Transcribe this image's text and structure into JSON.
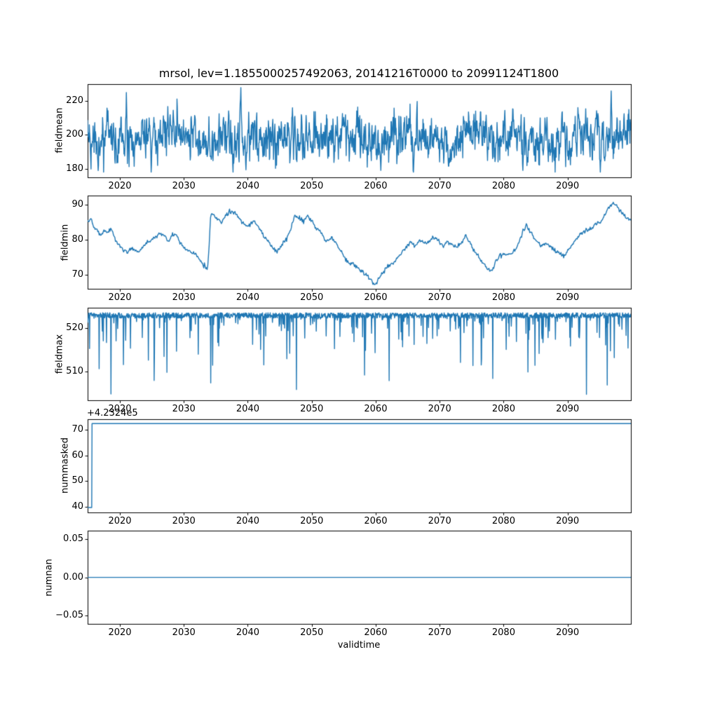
{
  "figure": {
    "title": "mrsol, lev=1.1855000257492063, 20141216T0000 to 20991124T1800",
    "xlabel": "validtime",
    "line_color": "#1f77b4",
    "background": "#ffffff",
    "x_range": [
      2014.96,
      2099.9
    ],
    "x_ticks": [
      2020,
      2030,
      2040,
      2050,
      2060,
      2070,
      2080,
      2090
    ],
    "x_tick_labels": [
      "2020",
      "2030",
      "2040",
      "2050",
      "2060",
      "2070",
      "2080",
      "2090"
    ]
  },
  "chart_data": [
    {
      "type": "line",
      "ylabel": "fieldmean",
      "yticks": [
        180,
        200,
        220
      ],
      "ytick_labels": [
        "180",
        "200",
        "220"
      ],
      "ylim": [
        175,
        230
      ],
      "series": {
        "kind": "ar_noise",
        "seed": 20141216,
        "n": 1600,
        "base": 198,
        "phi": 0.55,
        "sigma": 6.2,
        "clip": [
          178,
          228
        ],
        "force": [
          [
            2021.0,
            225
          ],
          [
            2038.9,
            228
          ],
          [
            2047.0,
            216
          ],
          [
            2060.8,
            179
          ],
          [
            2083.0,
            179
          ],
          [
            2096.8,
            226
          ]
        ]
      }
    },
    {
      "type": "line",
      "ylabel": "fieldmin",
      "yticks": [
        70,
        80,
        90
      ],
      "ytick_labels": [
        "70",
        "80",
        "90"
      ],
      "ylim": [
        66,
        92.5
      ],
      "series": {
        "kind": "anchors",
        "seed": 5,
        "n": 800,
        "noise_sd": 0.3,
        "points": [
          [
            2014.96,
            85.5
          ],
          [
            2015.5,
            86
          ],
          [
            2016,
            83
          ],
          [
            2016.5,
            82.5
          ],
          [
            2017,
            81
          ],
          [
            2017.5,
            82.5
          ],
          [
            2018,
            82
          ],
          [
            2018.7,
            83
          ],
          [
            2019.3,
            80
          ],
          [
            2020,
            78
          ],
          [
            2020.7,
            77
          ],
          [
            2021.2,
            76.5
          ],
          [
            2021.8,
            77.5
          ],
          [
            2022.4,
            76.8
          ],
          [
            2023,
            76.5
          ],
          [
            2023.6,
            78
          ],
          [
            2024.3,
            79.5
          ],
          [
            2025,
            80
          ],
          [
            2025.7,
            81
          ],
          [
            2026.4,
            82
          ],
          [
            2027,
            81
          ],
          [
            2027.6,
            79.5
          ],
          [
            2028.2,
            81.5
          ],
          [
            2028.9,
            81
          ],
          [
            2029.5,
            79
          ],
          [
            2030.2,
            77.5
          ],
          [
            2031,
            76.5
          ],
          [
            2031.8,
            76
          ],
          [
            2032.5,
            74.5
          ],
          [
            2033.2,
            72.5
          ],
          [
            2033.7,
            71.8
          ],
          [
            2033.9,
            76
          ],
          [
            2034.2,
            87.5
          ],
          [
            2035,
            86.5
          ],
          [
            2035.8,
            85
          ],
          [
            2036.5,
            86.5
          ],
          [
            2037.2,
            88
          ],
          [
            2038,
            87.5
          ],
          [
            2038.8,
            86
          ],
          [
            2039.5,
            84.5
          ],
          [
            2040.2,
            84
          ],
          [
            2041,
            85.5
          ],
          [
            2041.8,
            83
          ],
          [
            2042.5,
            81
          ],
          [
            2043.2,
            80
          ],
          [
            2044,
            77.5
          ],
          [
            2044.7,
            76.5
          ],
          [
            2045.3,
            78.5
          ],
          [
            2046,
            80
          ],
          [
            2046.7,
            83
          ],
          [
            2047.3,
            87
          ],
          [
            2048,
            86
          ],
          [
            2048.7,
            85.5
          ],
          [
            2049.4,
            86.5
          ],
          [
            2050,
            85.5
          ],
          [
            2050.8,
            83
          ],
          [
            2051.5,
            82
          ],
          [
            2052.2,
            79.5
          ],
          [
            2053,
            80.5
          ],
          [
            2053.8,
            79
          ],
          [
            2054.5,
            77
          ],
          [
            2055.3,
            74.5
          ],
          [
            2056,
            73.5
          ],
          [
            2056.8,
            72.5
          ],
          [
            2057.5,
            71.5
          ],
          [
            2058.2,
            70.5
          ],
          [
            2059,
            69
          ],
          [
            2059.7,
            67.5
          ],
          [
            2060.1,
            67
          ],
          [
            2060.5,
            69
          ],
          [
            2061,
            70.5
          ],
          [
            2061.8,
            72
          ],
          [
            2062.5,
            73
          ],
          [
            2063.3,
            74.5
          ],
          [
            2064,
            76
          ],
          [
            2064.8,
            78
          ],
          [
            2065.5,
            79.5
          ],
          [
            2066.2,
            78
          ],
          [
            2067,
            80
          ],
          [
            2067.7,
            79
          ],
          [
            2068.4,
            79.5
          ],
          [
            2069,
            80.5
          ],
          [
            2069.8,
            80
          ],
          [
            2070.5,
            78
          ],
          [
            2071.2,
            79.5
          ],
          [
            2072,
            78.5
          ],
          [
            2072.7,
            78
          ],
          [
            2073.4,
            79
          ],
          [
            2074,
            81
          ],
          [
            2074.8,
            79
          ],
          [
            2075.5,
            76.5
          ],
          [
            2076.2,
            75
          ],
          [
            2077,
            72.5
          ],
          [
            2077.7,
            71.5
          ],
          [
            2078.2,
            71
          ],
          [
            2078.8,
            74
          ],
          [
            2079.5,
            75.5
          ],
          [
            2080.2,
            76
          ],
          [
            2081,
            75.5
          ],
          [
            2081.7,
            77
          ],
          [
            2082.4,
            79
          ],
          [
            2083,
            82.5
          ],
          [
            2083.6,
            84
          ],
          [
            2084.3,
            82
          ],
          [
            2085,
            80
          ],
          [
            2085.8,
            78.5
          ],
          [
            2086.5,
            79
          ],
          [
            2087.2,
            78.5
          ],
          [
            2088,
            77
          ],
          [
            2088.7,
            76
          ],
          [
            2089.4,
            75.5
          ],
          [
            2090,
            76.5
          ],
          [
            2090.8,
            79
          ],
          [
            2091.5,
            80.5
          ],
          [
            2092.2,
            82
          ],
          [
            2093,
            82.5
          ],
          [
            2093.8,
            83.5
          ],
          [
            2094.5,
            84.5
          ],
          [
            2095.2,
            85
          ],
          [
            2096,
            87.5
          ],
          [
            2096.7,
            90
          ],
          [
            2097.2,
            90.5
          ],
          [
            2097.8,
            89
          ],
          [
            2098.4,
            88
          ],
          [
            2099,
            86.5
          ],
          [
            2099.9,
            85.5
          ]
        ]
      }
    },
    {
      "type": "line",
      "ylabel": "fieldmax",
      "yticks": [
        510,
        520
      ],
      "ytick_labels": [
        "510",
        "520"
      ],
      "ylim": [
        503.5,
        524.6
      ],
      "series": {
        "kind": "ceiling_spikes",
        "seed": 77,
        "n": 1700,
        "ceiling": 523.4,
        "jitter": 1.2,
        "spike_prob": 0.12,
        "depth_scale": 3.5,
        "depth_max": 17.5,
        "deep_spikes": [
          [
            2018.6,
            505
          ],
          [
            2034.2,
            507.5
          ],
          [
            2047.6,
            506
          ],
          [
            2062.1,
            508
          ],
          [
            2078.3,
            508.5
          ],
          [
            2096.2,
            507
          ]
        ]
      }
    },
    {
      "type": "line",
      "ylabel": "nummasked",
      "yticks": [
        40,
        50,
        60,
        70
      ],
      "ytick_labels": [
        "40",
        "50",
        "60",
        "70"
      ],
      "ylim": [
        38,
        74
      ],
      "offset_text": "+4.2324e5",
      "series": {
        "kind": "steps",
        "points": [
          [
            2014.96,
            39.8
          ],
          [
            2015.6,
            39.8
          ],
          [
            2015.65,
            72.3
          ],
          [
            2099.9,
            72.3
          ]
        ]
      }
    },
    {
      "type": "line",
      "ylabel": "numnan",
      "yticks": [
        -0.05,
        0.0,
        0.05
      ],
      "ytick_labels": [
        "−0.05",
        "0.00",
        "0.05"
      ],
      "ylim": [
        -0.0605,
        0.0605
      ],
      "series": {
        "kind": "steps",
        "points": [
          [
            2014.96,
            0
          ],
          [
            2099.9,
            0
          ]
        ]
      }
    }
  ]
}
